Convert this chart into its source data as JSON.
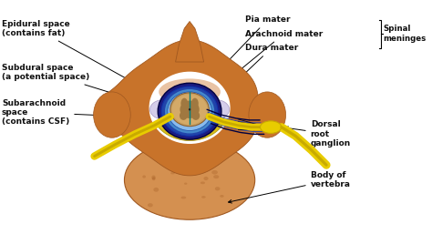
{
  "labels": {
    "epidural": "Epidural space\n(contains fat)",
    "subdural": "Subdural space\n(a potential space)",
    "subarachnoid": "Subarachnoid\nspace\n(contains CSF)",
    "pia": "Pia mater",
    "arachnoid": "Arachnoid mater",
    "dura": "Dura mater",
    "spinal_meninges": "Spinal\nmeninges",
    "dorsal": "Dorsal\nroot\nganglion",
    "body": "Body of\nvertebra"
  },
  "colors": {
    "vertebra": "#c8732a",
    "vertebra_light": "#d4894a",
    "vertebra_dark": "#a05820",
    "vertebra_body": "#d49050",
    "background": "#f5f0e8",
    "dura_dark": "#1a1a80",
    "dura_mid": "#2244aa",
    "csf_blue": "#4488cc",
    "csf_light": "#88bbee",
    "pia_color": "#3366bb",
    "cord_tan": "#c8a060",
    "gray_matter": "#a07840",
    "nerve_yellow": "#e8cc00",
    "nerve_dark": "#c8aa00",
    "ganglion_yellow": "#e8cc00",
    "fat_lavender": "#d0c8e8",
    "fat_lavender2": "#c8c0e0",
    "yellow_lig": "#d4b800",
    "teal_line": "#008080",
    "white_bg": "#ffffff"
  }
}
